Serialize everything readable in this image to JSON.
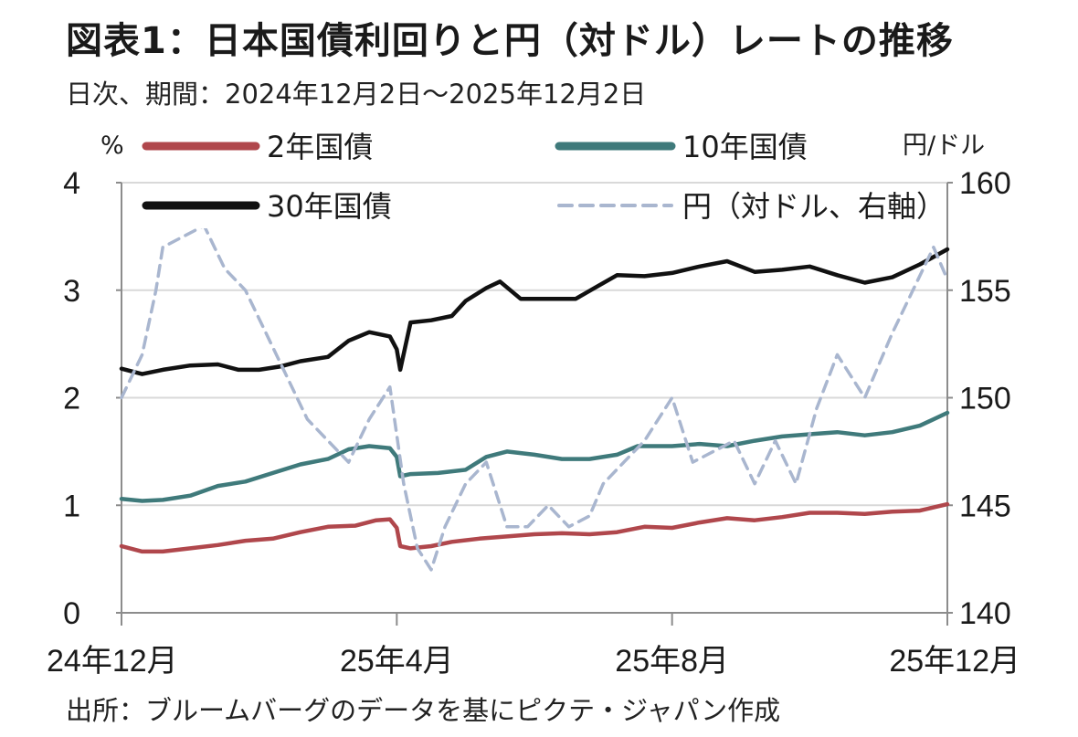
{
  "title": "図表1：日本国債利回りと円（対ドル）レートの推移",
  "subtitle": "日次、期間：2024年12月2日〜2025年12月2日",
  "source": "出所：ブルームバーグのデータを基にピクテ・ジャパン作成",
  "colors": {
    "jgb2y": "#b0474c",
    "jgb10y": "#3f7a7b",
    "jgb30y": "#111111",
    "usdjpy": "#a9b6cf",
    "grid": "#d9d9d9",
    "axis": "#8c8c8c"
  },
  "chart_data": {
    "type": "line",
    "title": "日本国債利回りと円（対ドル）レートの推移",
    "x_label": "",
    "left_axis": {
      "label": "%",
      "range": [
        0,
        4
      ],
      "ticks": [
        "0",
        "1",
        "2",
        "3",
        "4"
      ]
    },
    "right_axis": {
      "label": "円/ドル",
      "range": [
        140,
        160
      ],
      "ticks": [
        "140",
        "145",
        "150",
        "155",
        "160"
      ]
    },
    "x_range": [
      0,
      12
    ],
    "x_ticks": [
      {
        "x": 0,
        "label": "24年12月"
      },
      {
        "x": 4,
        "label": "25年4月"
      },
      {
        "x": 8,
        "label": "25年8月"
      },
      {
        "x": 12,
        "label": "25年12月"
      }
    ],
    "grid": true,
    "legend": [
      {
        "key": "jgb2y",
        "label": "2年国債"
      },
      {
        "key": "jgb10y",
        "label": "10年国債"
      },
      {
        "key": "jgb30y",
        "label": "30年国債"
      },
      {
        "key": "usdjpy",
        "label": "円（対ドル、右軸）"
      }
    ],
    "series": [
      {
        "key": "jgb2y",
        "name": "2年国債",
        "axis": "left",
        "style": "solid",
        "points": [
          [
            0,
            0.62
          ],
          [
            0.3,
            0.57
          ],
          [
            0.6,
            0.57
          ],
          [
            1,
            0.6
          ],
          [
            1.4,
            0.63
          ],
          [
            1.8,
            0.67
          ],
          [
            2.2,
            0.69
          ],
          [
            2.6,
            0.75
          ],
          [
            3,
            0.8
          ],
          [
            3.4,
            0.81
          ],
          [
            3.7,
            0.86
          ],
          [
            3.9,
            0.87
          ],
          [
            4.0,
            0.79
          ],
          [
            4.05,
            0.62
          ],
          [
            4.2,
            0.6
          ],
          [
            4.5,
            0.62
          ],
          [
            4.8,
            0.66
          ],
          [
            5.2,
            0.69
          ],
          [
            5.6,
            0.71
          ],
          [
            6,
            0.73
          ],
          [
            6.4,
            0.74
          ],
          [
            6.8,
            0.73
          ],
          [
            7.2,
            0.75
          ],
          [
            7.6,
            0.8
          ],
          [
            8,
            0.79
          ],
          [
            8.4,
            0.84
          ],
          [
            8.8,
            0.88
          ],
          [
            9.2,
            0.86
          ],
          [
            9.6,
            0.89
          ],
          [
            10,
            0.93
          ],
          [
            10.4,
            0.93
          ],
          [
            10.8,
            0.92
          ],
          [
            11.2,
            0.94
          ],
          [
            11.6,
            0.95
          ],
          [
            12,
            1.01
          ]
        ]
      },
      {
        "key": "jgb10y",
        "name": "10年国債",
        "axis": "left",
        "style": "solid",
        "points": [
          [
            0,
            1.06
          ],
          [
            0.3,
            1.04
          ],
          [
            0.6,
            1.05
          ],
          [
            1,
            1.09
          ],
          [
            1.4,
            1.18
          ],
          [
            1.8,
            1.22
          ],
          [
            2.2,
            1.3
          ],
          [
            2.6,
            1.38
          ],
          [
            3,
            1.43
          ],
          [
            3.3,
            1.52
          ],
          [
            3.6,
            1.55
          ],
          [
            3.9,
            1.53
          ],
          [
            4.0,
            1.45
          ],
          [
            4.05,
            1.27
          ],
          [
            4.2,
            1.29
          ],
          [
            4.6,
            1.3
          ],
          [
            5,
            1.33
          ],
          [
            5.3,
            1.45
          ],
          [
            5.6,
            1.5
          ],
          [
            6,
            1.47
          ],
          [
            6.4,
            1.43
          ],
          [
            6.8,
            1.43
          ],
          [
            7.2,
            1.47
          ],
          [
            7.5,
            1.55
          ],
          [
            8,
            1.55
          ],
          [
            8.4,
            1.57
          ],
          [
            8.8,
            1.55
          ],
          [
            9.2,
            1.6
          ],
          [
            9.6,
            1.64
          ],
          [
            10,
            1.66
          ],
          [
            10.4,
            1.68
          ],
          [
            10.8,
            1.65
          ],
          [
            11.2,
            1.68
          ],
          [
            11.6,
            1.74
          ],
          [
            12,
            1.86
          ]
        ]
      },
      {
        "key": "jgb30y",
        "name": "30年国債",
        "axis": "left",
        "style": "solid",
        "points": [
          [
            0,
            2.27
          ],
          [
            0.3,
            2.22
          ],
          [
            0.6,
            2.26
          ],
          [
            1,
            2.3
          ],
          [
            1.4,
            2.31
          ],
          [
            1.7,
            2.26
          ],
          [
            2,
            2.26
          ],
          [
            2.3,
            2.29
          ],
          [
            2.6,
            2.34
          ],
          [
            3,
            2.38
          ],
          [
            3.3,
            2.53
          ],
          [
            3.6,
            2.61
          ],
          [
            3.9,
            2.57
          ],
          [
            4.0,
            2.45
          ],
          [
            4.05,
            2.26
          ],
          [
            4.2,
            2.7
          ],
          [
            4.5,
            2.72
          ],
          [
            4.8,
            2.76
          ],
          [
            5,
            2.9
          ],
          [
            5.3,
            3.02
          ],
          [
            5.5,
            3.08
          ],
          [
            5.8,
            2.92
          ],
          [
            6.2,
            2.92
          ],
          [
            6.6,
            2.92
          ],
          [
            6.9,
            3.03
          ],
          [
            7.2,
            3.14
          ],
          [
            7.6,
            3.13
          ],
          [
            8,
            3.16
          ],
          [
            8.4,
            3.22
          ],
          [
            8.8,
            3.27
          ],
          [
            9.2,
            3.17
          ],
          [
            9.6,
            3.19
          ],
          [
            10,
            3.22
          ],
          [
            10.4,
            3.14
          ],
          [
            10.8,
            3.07
          ],
          [
            11.2,
            3.12
          ],
          [
            11.6,
            3.24
          ],
          [
            12,
            3.38
          ]
        ]
      },
      {
        "key": "usdjpy",
        "name": "円（対ドル、右軸）",
        "axis": "right",
        "style": "dashed",
        "points": [
          [
            0,
            150
          ],
          [
            0.3,
            152
          ],
          [
            0.5,
            155
          ],
          [
            0.6,
            157
          ],
          [
            0.9,
            157.5
          ],
          [
            1.2,
            158
          ],
          [
            1.5,
            156
          ],
          [
            1.8,
            155
          ],
          [
            2.1,
            153
          ],
          [
            2.4,
            151
          ],
          [
            2.7,
            149
          ],
          [
            3,
            148
          ],
          [
            3.3,
            147
          ],
          [
            3.6,
            149
          ],
          [
            3.9,
            150.5
          ],
          [
            4.1,
            146
          ],
          [
            4.3,
            143
          ],
          [
            4.5,
            142
          ],
          [
            4.7,
            144
          ],
          [
            5,
            146
          ],
          [
            5.3,
            147
          ],
          [
            5.6,
            144
          ],
          [
            5.9,
            144
          ],
          [
            6.2,
            145
          ],
          [
            6.5,
            144
          ],
          [
            6.8,
            144.5
          ],
          [
            7,
            146
          ],
          [
            7.3,
            147
          ],
          [
            7.6,
            148
          ],
          [
            8,
            150
          ],
          [
            8.3,
            147
          ],
          [
            8.6,
            147.5
          ],
          [
            8.9,
            148
          ],
          [
            9.2,
            146
          ],
          [
            9.5,
            148
          ],
          [
            9.8,
            146
          ],
          [
            10.1,
            149.5
          ],
          [
            10.4,
            152
          ],
          [
            10.8,
            150
          ],
          [
            11.2,
            153
          ],
          [
            11.5,
            155
          ],
          [
            11.8,
            157
          ],
          [
            12,
            155.5
          ]
        ]
      }
    ]
  }
}
